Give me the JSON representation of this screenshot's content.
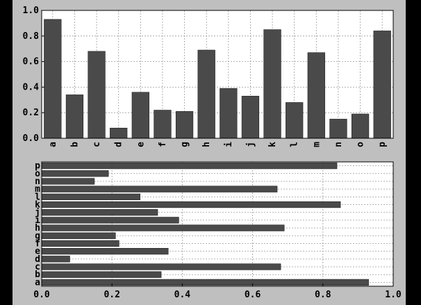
{
  "chart_data": [
    {
      "type": "bar",
      "orientation": "vertical",
      "categories": [
        "a",
        "b",
        "c",
        "d",
        "e",
        "f",
        "g",
        "h",
        "i",
        "j",
        "k",
        "l",
        "m",
        "n",
        "o",
        "p"
      ],
      "values": [
        0.93,
        0.34,
        0.68,
        0.08,
        0.36,
        0.22,
        0.21,
        0.69,
        0.39,
        0.33,
        0.85,
        0.28,
        0.67,
        0.15,
        0.19,
        0.84
      ],
      "ylim": [
        0,
        1.0
      ],
      "yticks": [
        "0.0",
        "0.2",
        "0.4",
        "0.6",
        "0.8",
        "1.0"
      ],
      "grid": true,
      "bar_color": "#4a4a4a",
      "tick_label_rotation": "vertical"
    },
    {
      "type": "bar",
      "orientation": "horizontal",
      "categories": [
        "a",
        "b",
        "c",
        "d",
        "e",
        "f",
        "g",
        "h",
        "i",
        "j",
        "k",
        "l",
        "m",
        "n",
        "o",
        "p"
      ],
      "values": [
        0.93,
        0.34,
        0.68,
        0.08,
        0.36,
        0.22,
        0.21,
        0.69,
        0.39,
        0.33,
        0.85,
        0.28,
        0.67,
        0.15,
        0.19,
        0.84
      ],
      "xlim": [
        0,
        1.0
      ],
      "xticks": [
        "0.0",
        "0.2",
        "0.4",
        "0.6",
        "0.8",
        "1.0"
      ],
      "grid": true,
      "bar_color": "#4a4a4a"
    }
  ],
  "colors": {
    "figure_bg": "#bfbfbf",
    "axes_bg": "#ffffff",
    "bar": "#4a4a4a",
    "grid": "#9a9a9a"
  }
}
